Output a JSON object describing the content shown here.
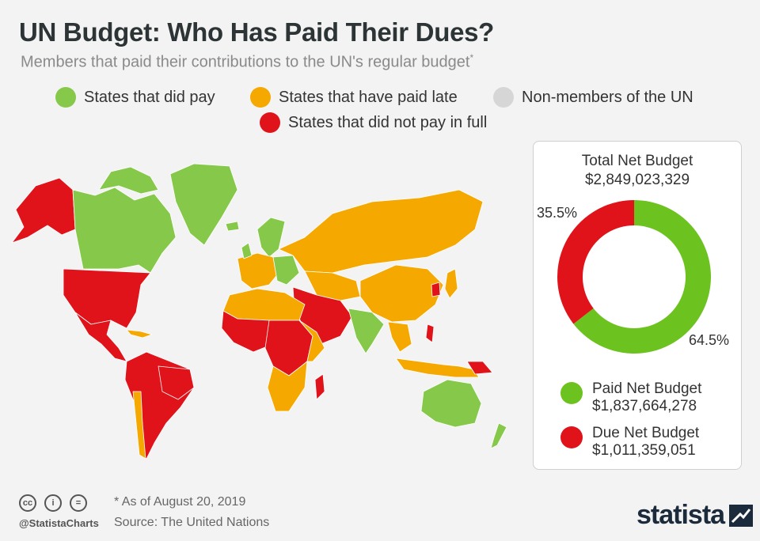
{
  "header": {
    "title": "UN Budget: Who Has Paid Their Dues?",
    "subtitle": "Members that paid their contributions to the UN's regular budget",
    "subtitle_mark": "*"
  },
  "legend": [
    {
      "label": "States that did pay",
      "color": "#86c94a"
    },
    {
      "label": "States that have paid late",
      "color": "#f5a800"
    },
    {
      "label": "Non-members of the UN",
      "color": "#d6d6d6"
    },
    {
      "label": "States that did not pay in full",
      "color": "#e0131b"
    }
  ],
  "chart_data": {
    "type": "pie",
    "title": "Total Net Budget",
    "total": "$2,849,023,329",
    "slices": [
      {
        "name": "Paid Net Budget",
        "value": 1837664278,
        "amount": "$1,837,664,278",
        "percent": 64.5,
        "percent_label": "64.5%",
        "color": "#6cc21f"
      },
      {
        "name": "Due Net Budget",
        "value": 1011359051,
        "amount": "$1,011,359,051",
        "percent": 35.5,
        "percent_label": "35.5%",
        "color": "#e0131b"
      }
    ]
  },
  "footer": {
    "note": "* As of August 20, 2019",
    "source": "Source: The United Nations",
    "handle": "@StatistaCharts",
    "brand": "statista"
  }
}
